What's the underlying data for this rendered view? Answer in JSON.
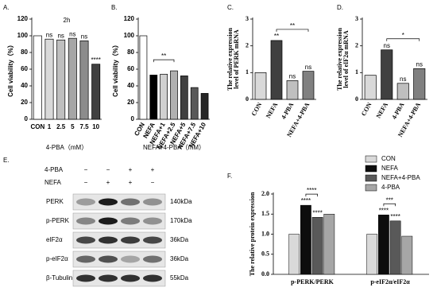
{
  "chart_data": [
    {
      "type": "bar",
      "label": "A.",
      "title": "2h",
      "ylabel": [
        "Cell viability（%）"
      ],
      "xlabel": "4-PBA（mM）",
      "categories": [
        "CON",
        "1",
        "2.5",
        "5",
        "7.5",
        "10"
      ],
      "values": [
        100,
        96,
        95,
        97,
        94,
        66
      ],
      "colors": [
        "#ffffff",
        "#d9d9d9",
        "#bfbfbf",
        "#a6a6a6",
        "#8c8c8c",
        "#404040"
      ],
      "annotations": [
        null,
        "ns",
        "ns",
        "ns",
        "ns",
        "****"
      ],
      "ylim": [
        0,
        120
      ],
      "yticks": [
        0,
        20,
        40,
        60,
        80,
        100,
        120
      ]
    },
    {
      "type": "bar",
      "label": "B.",
      "ylabel": [
        "Cell viability（%）"
      ],
      "xlabel": "NEFA+4-PBA（mM）",
      "categories": [
        "CON",
        "NEFA",
        "NEFA+1",
        "NEFA+2.5",
        "NEFA+5",
        "NEFA+7.5",
        "NEFA+10"
      ],
      "values": [
        100,
        53,
        54,
        58,
        52,
        38,
        31
      ],
      "colors": [
        "#ffffff",
        "#000000",
        "#d0d0d0",
        "#b0b0b0",
        "#404040",
        "#595959",
        "#262626"
      ],
      "comparison_label": "**",
      "ylim": [
        0,
        120
      ],
      "yticks": [
        0,
        20,
        40,
        60,
        80,
        100,
        120
      ]
    },
    {
      "type": "bar",
      "label": "C.",
      "ylabel": [
        "The relative expression",
        "level of PERK mRNA"
      ],
      "categories": [
        "CON",
        "NEFA",
        "4-PBA",
        "NEFA+4-PBA"
      ],
      "values": [
        1.0,
        2.2,
        0.7,
        1.05
      ],
      "colors": [
        "#d9d9d9",
        "#404040",
        "#bfbfbf",
        "#808080"
      ],
      "annotations": [
        null,
        "**",
        "ns",
        "ns"
      ],
      "comparison_label": "**",
      "ylim": [
        0,
        3
      ],
      "yticks": [
        0,
        1,
        2,
        3
      ]
    },
    {
      "type": "bar",
      "label": "D.",
      "ylabel": [
        "The relative expression",
        "level of eIF2α mRNA"
      ],
      "categories": [
        "CON",
        "NEFA",
        "4-PBA",
        "NEFA+4-PBA"
      ],
      "values": [
        0.9,
        1.85,
        0.6,
        1.15
      ],
      "colors": [
        "#d9d9d9",
        "#404040",
        "#bfbfbf",
        "#808080"
      ],
      "annotations": [
        null,
        "ns",
        "ns",
        "ns"
      ],
      "comparison_label": "*",
      "ylim": [
        0,
        3
      ],
      "yticks": [
        0,
        1,
        2,
        3
      ]
    },
    {
      "type": "grouped-bar",
      "label": "F.",
      "ylabel": [
        "The relative protein expression"
      ],
      "categories": [
        "p-PERK/PERK",
        "p-eIF2α/eIF2α"
      ],
      "series": [
        {
          "name": "CON",
          "color": "#d9d9d9",
          "values": [
            1.0,
            1.0
          ],
          "annotations": [
            null,
            null
          ]
        },
        {
          "name": "NEFA",
          "color": "#0d0d0d",
          "values": [
            1.72,
            1.48
          ],
          "annotations": [
            "****",
            "****"
          ]
        },
        {
          "name": "NEFA+4-PBA",
          "color": "#595959",
          "values": [
            1.42,
            1.33
          ],
          "annotations": [
            "****",
            "****"
          ]
        },
        {
          "name": "4-PBA",
          "color": "#a6a6a6",
          "values": [
            1.5,
            0.95
          ],
          "annotations": [
            null,
            null
          ]
        }
      ],
      "comparison_labels": [
        "****",
        "***"
      ],
      "ylim": [
        0,
        2.0
      ],
      "yticks": [
        {
          "value": 0,
          "label": "0.0"
        },
        {
          "value": 0.5,
          "label": "0.5"
        },
        {
          "value": 1.0,
          "label": "1.0"
        },
        {
          "value": 1.5,
          "label": "1.5"
        },
        {
          "value": 2.0,
          "label": "2.0"
        }
      ]
    }
  ],
  "western_blot": {
    "label": "E.",
    "treatments": [
      {
        "name": "4-PBA",
        "signs": [
          "−",
          "−",
          "+",
          "+"
        ]
      },
      {
        "name": "NEFA",
        "signs": [
          "−",
          "+",
          "+",
          "−"
        ]
      }
    ],
    "bands": [
      {
        "protein": "PERK",
        "size": "140kDa"
      },
      {
        "protein": "p-PERK",
        "size": "170kDa"
      },
      {
        "protein": "eIF2α",
        "size": "36kDa"
      },
      {
        "protein": "p-eIF2α",
        "size": "36kDa"
      },
      {
        "protein": "β-Tubulin",
        "size": "55kDa"
      }
    ]
  }
}
